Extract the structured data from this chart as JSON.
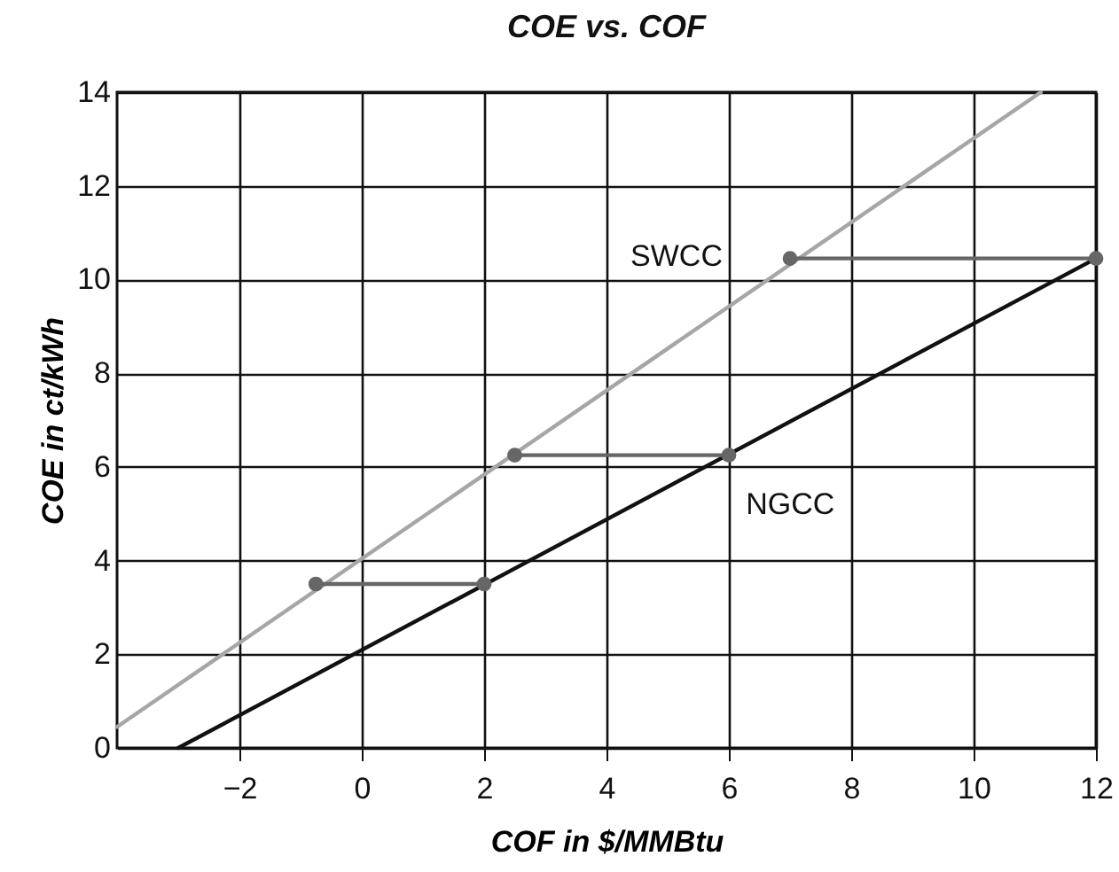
{
  "chart_data": {
    "type": "line",
    "title": "COE vs. COF",
    "xlabel": "COF in $/MMBtu",
    "ylabel": "COE in ct/kWh",
    "xlim": [
      -4,
      12
    ],
    "ylim": [
      0,
      14
    ],
    "xticks": [
      {
        "value": -2,
        "label": "−2"
      },
      0,
      2,
      4,
      6,
      8,
      10,
      12
    ],
    "yticks": [
      0,
      2,
      4,
      6,
      8,
      10,
      12,
      14
    ],
    "grid": true,
    "line_style": "solid",
    "marker": "none",
    "series": [
      {
        "name": "SWCC",
        "color": "#a6a6a6",
        "x": [
          -4,
          11.1
        ],
        "values": [
          0.45,
          14
        ]
      },
      {
        "name": "NGCC",
        "color": "#111111",
        "x": [
          -3,
          12
        ],
        "values": [
          0,
          10.45
        ]
      },
      {
        "color": "#666666",
        "marker": "circle",
        "x": [
          -0.75,
          2
        ],
        "values": [
          3.5,
          3.5
        ]
      },
      {
        "color": "#666666",
        "marker": "circle",
        "x": [
          2.5,
          6
        ],
        "values": [
          6.25,
          6.25
        ]
      },
      {
        "color": "#666666",
        "marker": "circle",
        "x": [
          7,
          12
        ],
        "values": [
          10.45,
          10.45
        ]
      }
    ]
  }
}
